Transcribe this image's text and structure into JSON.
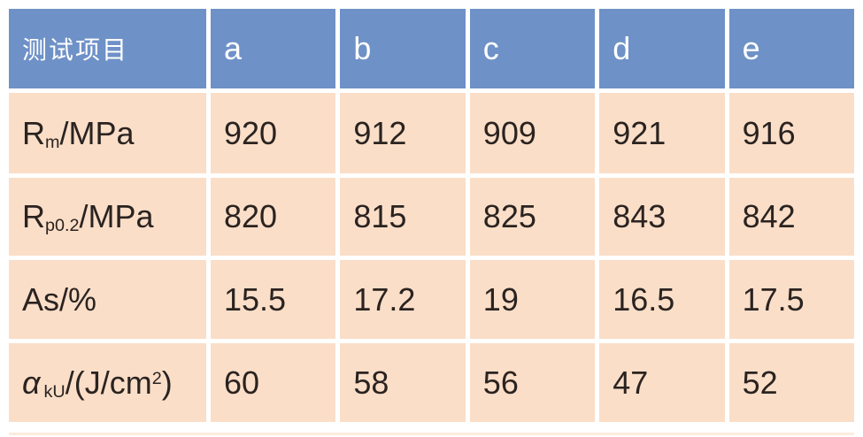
{
  "colors": {
    "header_bg": "#6e91c7",
    "header_text": "#ffffff",
    "cell_bg": "#fadec8",
    "cell_text": "#2a2320",
    "gutter": "#ffffff"
  },
  "table": {
    "header": {
      "col0": "测试项目",
      "cols": [
        "a",
        "b",
        "c",
        "d",
        "e"
      ]
    },
    "rows": [
      {
        "label": {
          "pre": "R",
          "sub": "m",
          "mid": "/MPa",
          "sup": "",
          "post": ""
        },
        "values": [
          "920",
          "912",
          "909",
          "921",
          "916"
        ]
      },
      {
        "label": {
          "pre": "R",
          "sub": "p0.2",
          "mid": "/MPa",
          "sup": "",
          "post": ""
        },
        "values": [
          "820",
          "815",
          "825",
          "843",
          "842"
        ]
      },
      {
        "label": {
          "pre": "As/%",
          "sub": "",
          "mid": "",
          "sup": "",
          "post": ""
        },
        "values": [
          "15.5",
          "17.2",
          "19",
          "16.5",
          "17.5"
        ]
      },
      {
        "label": {
          "pre": "α",
          "sub": "kU",
          "mid": "/(J/cm",
          "sup": "2",
          "post": ")"
        },
        "values": [
          "60",
          "58",
          "56",
          "47",
          "52"
        ]
      }
    ]
  },
  "chart_data": {
    "type": "table",
    "title": "",
    "columns": [
      "测试项目",
      "a",
      "b",
      "c",
      "d",
      "e"
    ],
    "rows": [
      {
        "label": "Rm/MPa",
        "values": [
          920,
          912,
          909,
          921,
          916
        ]
      },
      {
        "label": "Rp0.2/MPa",
        "values": [
          820,
          815,
          825,
          843,
          842
        ]
      },
      {
        "label": "As/%",
        "values": [
          15.5,
          17.2,
          19,
          16.5,
          17.5
        ]
      },
      {
        "label": "αkU/(J/cm2)",
        "values": [
          60,
          58,
          56,
          47,
          52
        ]
      }
    ],
    "layout": {
      "header_fill": "#6e91c7",
      "body_fill": "#fadec8",
      "divider": "white 5px gutters",
      "grid": "off"
    }
  }
}
